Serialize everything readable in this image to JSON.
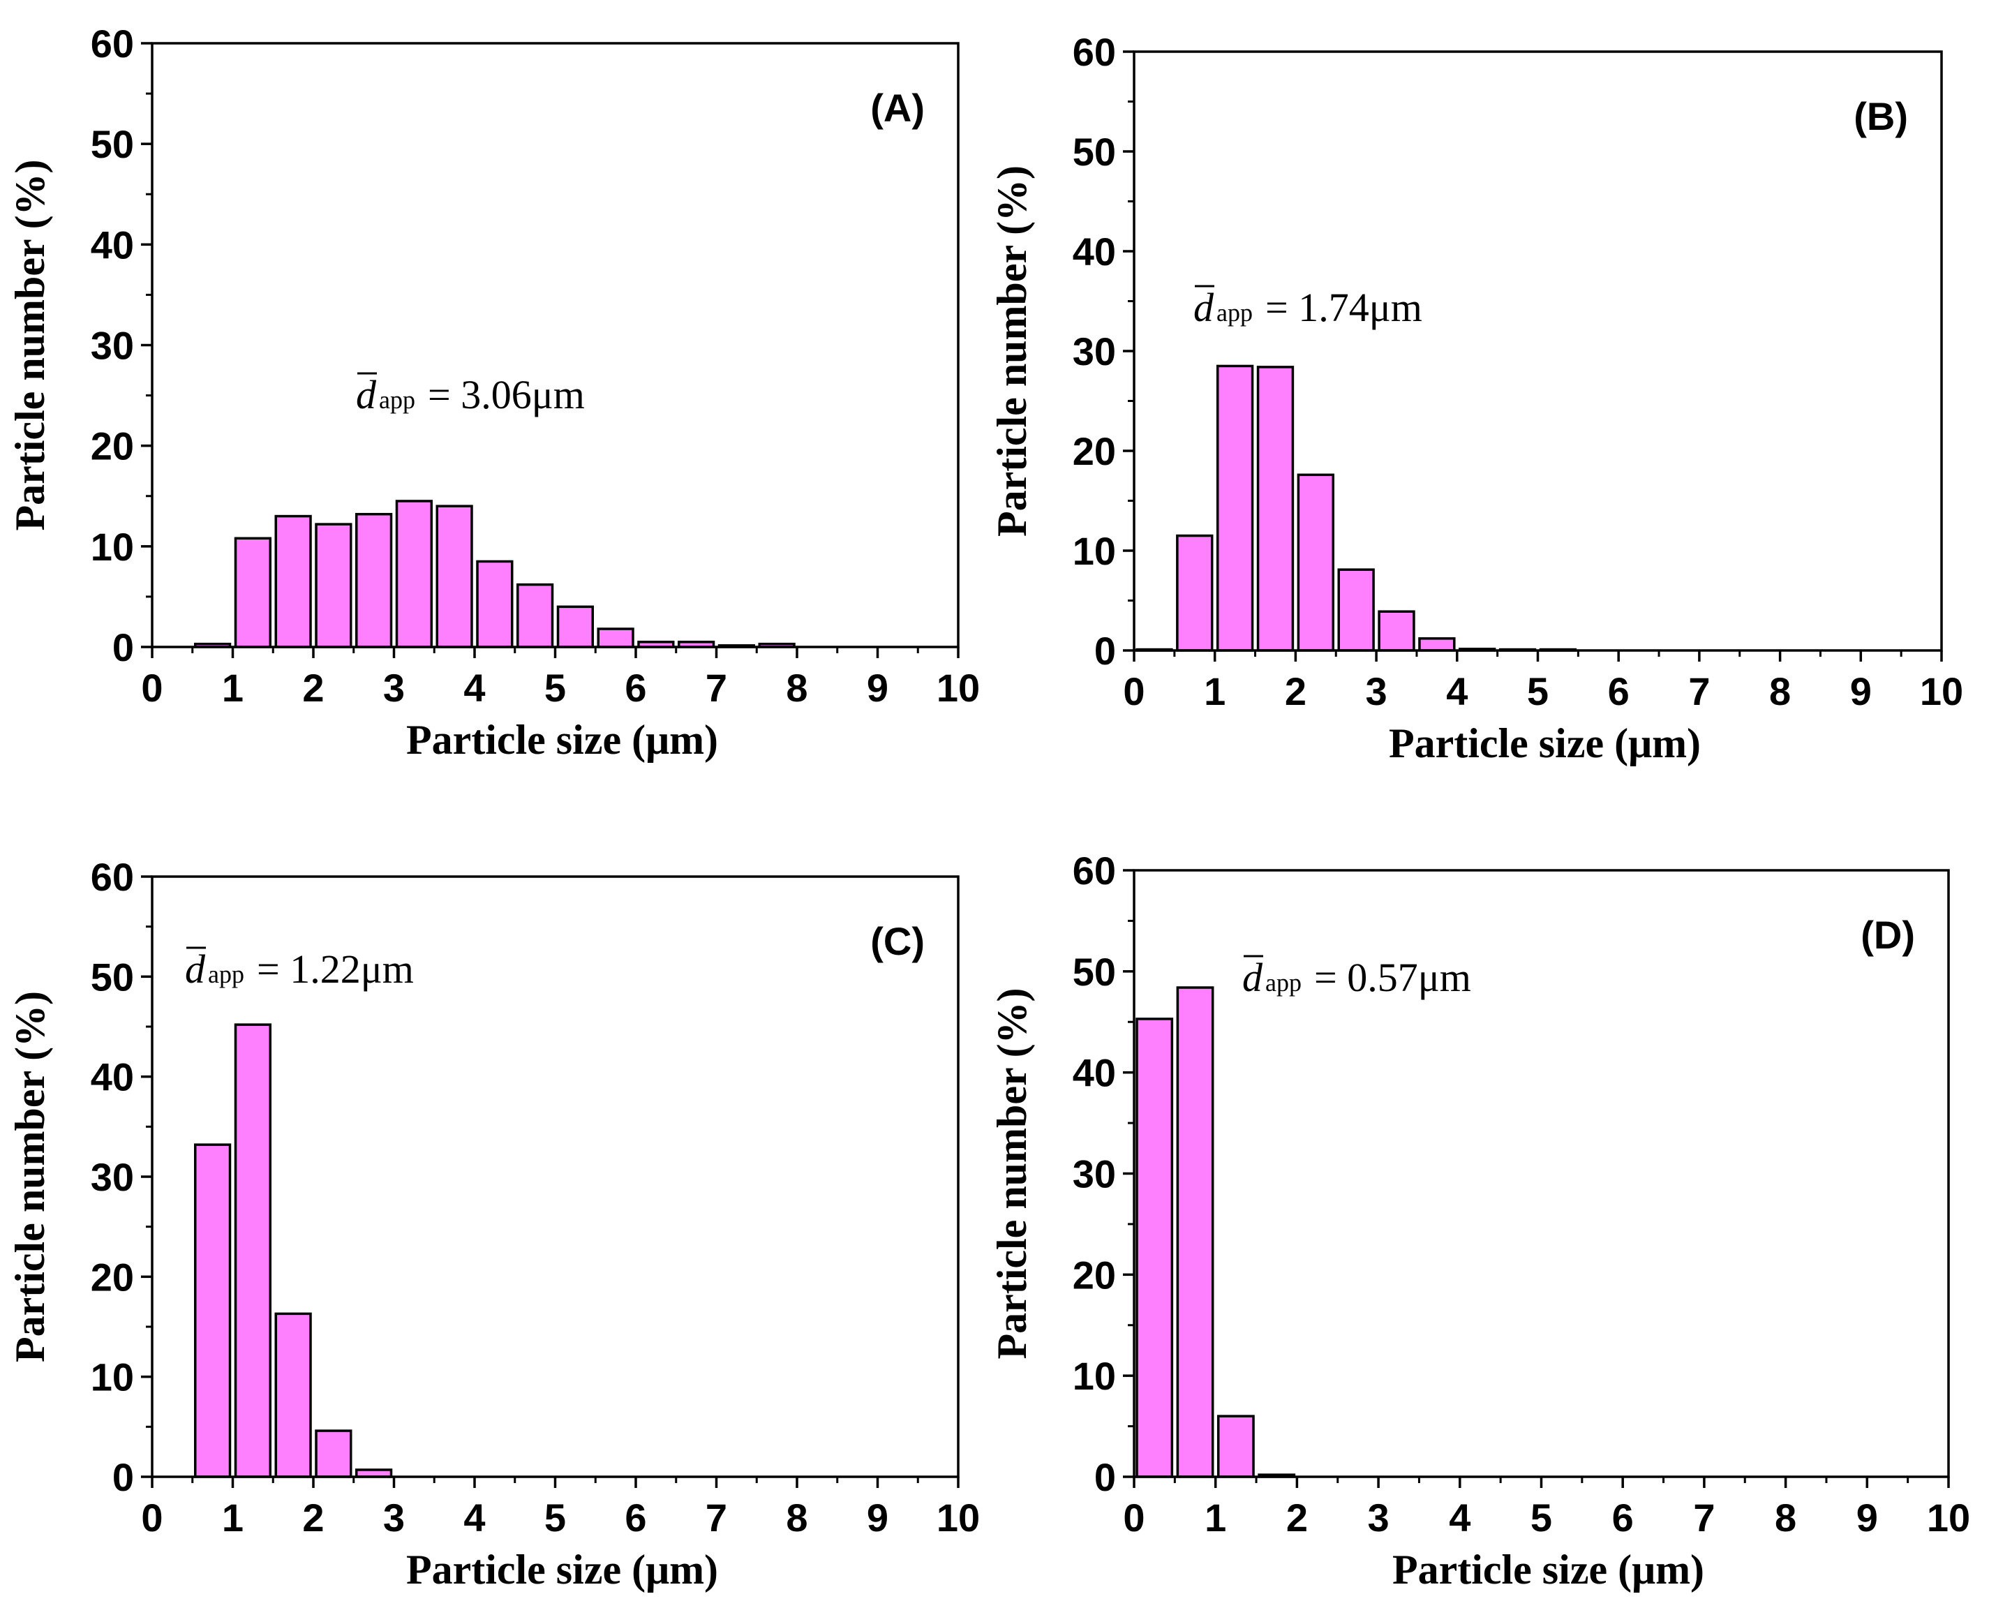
{
  "chart_data": [
    {
      "type": "bar",
      "panel_label": "(A)",
      "xlabel": "Particle size (μm)",
      "ylabel": "Particle number (%)",
      "xlim": [
        0,
        10
      ],
      "ylim": [
        0,
        60
      ],
      "xticks": [
        "0",
        "1",
        "2",
        "3",
        "4",
        "5",
        "6",
        "7",
        "8",
        "9",
        "10"
      ],
      "yticks": [
        "0",
        "10",
        "20",
        "30",
        "40",
        "50",
        "60"
      ],
      "bar_color": "#ff80ff",
      "bin_width": 0.5,
      "bins": [
        0.75,
        1.25,
        1.75,
        2.25,
        2.75,
        3.25,
        3.75,
        4.25,
        4.75,
        5.25,
        5.75,
        6.25,
        6.75,
        7.25,
        7.75
      ],
      "values": [
        0.3,
        10.8,
        13.0,
        12.2,
        13.2,
        14.5,
        14.0,
        8.5,
        6.2,
        4.0,
        1.8,
        0.5,
        0.5,
        0.15,
        0.3
      ],
      "annotation": {
        "symbol": "d",
        "subscript": "app",
        "text": "= 3.06μm"
      }
    },
    {
      "type": "bar",
      "panel_label": "(B)",
      "xlabel": "Particle size (μm)",
      "ylabel": "Particle number (%)",
      "xlim": [
        0,
        10
      ],
      "ylim": [
        0,
        60
      ],
      "xticks": [
        "0",
        "1",
        "2",
        "3",
        "4",
        "5",
        "6",
        "7",
        "8",
        "9",
        "10"
      ],
      "yticks": [
        "0",
        "10",
        "20",
        "30",
        "40",
        "50",
        "60"
      ],
      "bar_color": "#ff80ff",
      "bin_width": 0.5,
      "bins": [
        0.25,
        0.75,
        1.25,
        1.75,
        2.25,
        2.75,
        3.25,
        3.75,
        4.25,
        4.75,
        5.25
      ],
      "values": [
        0.1,
        11.5,
        28.5,
        28.4,
        17.6,
        8.1,
        3.9,
        1.2,
        0.15,
        0.1,
        0.1
      ],
      "annotation": {
        "symbol": "d",
        "subscript": "app",
        "text": "= 1.74μm"
      }
    },
    {
      "type": "bar",
      "panel_label": "(C)",
      "xlabel": "Particle size (μm)",
      "ylabel": "Particle number (%)",
      "xlim": [
        0,
        10
      ],
      "ylim": [
        0,
        60
      ],
      "xticks": [
        "0",
        "1",
        "2",
        "3",
        "4",
        "5",
        "6",
        "7",
        "8",
        "9",
        "10"
      ],
      "yticks": [
        "0",
        "10",
        "20",
        "30",
        "40",
        "50",
        "60"
      ],
      "bar_color": "#ff80ff",
      "bin_width": 0.5,
      "bins": [
        0.75,
        1.25,
        1.75,
        2.25,
        2.75
      ],
      "values": [
        33.2,
        45.2,
        16.3,
        4.6,
        0.7
      ],
      "annotation": {
        "symbol": "d",
        "subscript": "app",
        "text": "= 1.22μm"
      }
    },
    {
      "type": "bar",
      "panel_label": "(D)",
      "xlabel": "Particle size (μm)",
      "ylabel": "Particle number (%)",
      "xlim": [
        0,
        10
      ],
      "ylim": [
        0,
        60
      ],
      "xticks": [
        "0",
        "1",
        "2",
        "3",
        "4",
        "5",
        "6",
        "7",
        "8",
        "9",
        "10"
      ],
      "yticks": [
        "0",
        "10",
        "20",
        "30",
        "40",
        "50",
        "60"
      ],
      "bar_color": "#ff80ff",
      "bin_width": 0.5,
      "bins": [
        0.25,
        0.75,
        1.25,
        1.75
      ],
      "values": [
        45.3,
        48.4,
        6.0,
        0.2
      ],
      "annotation": {
        "symbol": "d",
        "subscript": "app",
        "text": "= 0.57μm"
      }
    }
  ]
}
